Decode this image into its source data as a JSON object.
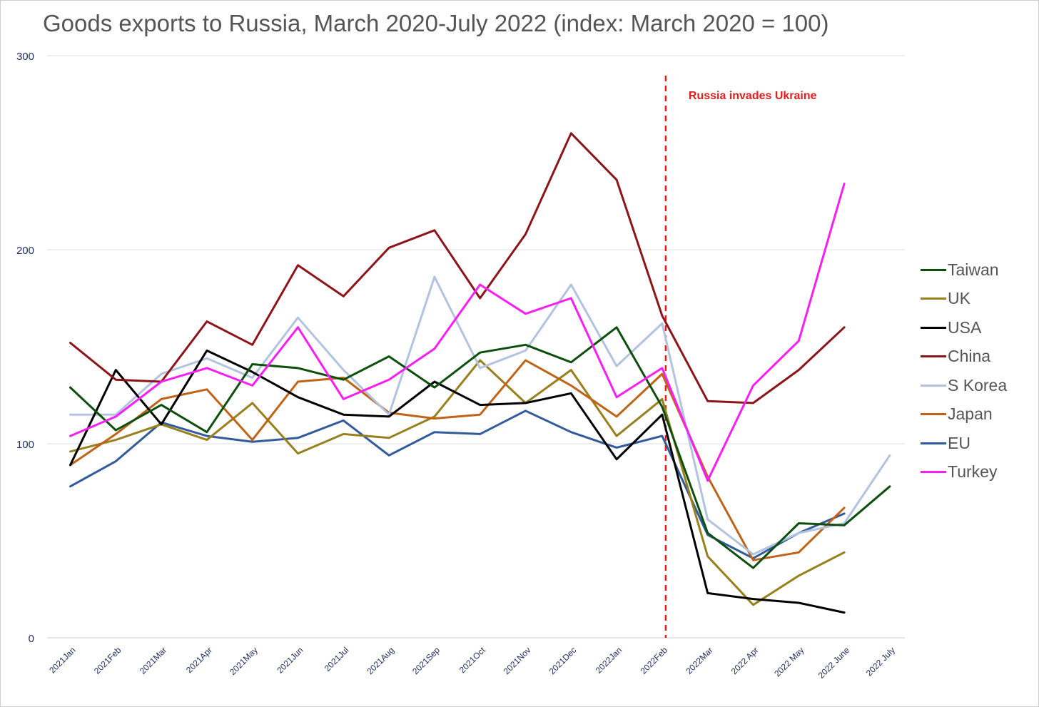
{
  "title": "Goods exports to Russia, March 2020-July 2022 (index: March 2020 = 100)",
  "chart_data": {
    "type": "line",
    "title": "Goods exports to Russia, March 2020-July 2022 (index: March 2020 = 100)",
    "xlabel": "",
    "ylabel": "",
    "categories": [
      "2021Jan",
      "2021Feb",
      "2021Mar",
      "2021Apr",
      "2021May",
      "2021Jun",
      "2021Jul",
      "2021Aug",
      "2021Sep",
      "2021Oct",
      "2021Nov",
      "2021Dec",
      "2022Jan",
      "2022Feb",
      "2022Mar",
      "2022 Apr",
      "2022 May",
      "2022 June",
      "2022 July"
    ],
    "yticks": [
      0,
      100,
      200,
      300
    ],
    "ylim": [
      0,
      300
    ],
    "grid": "horizontal",
    "legend_position": "right",
    "annotation": {
      "label": "Russia invades Ukraine",
      "category": "2022Feb",
      "color": "#e41d1d"
    },
    "series": [
      {
        "name": "Taiwan",
        "color": "#0d4f0d",
        "values": [
          129,
          107,
          120,
          106,
          141,
          139,
          133,
          145,
          129,
          147,
          151,
          142,
          160,
          119,
          54,
          36,
          59,
          58,
          78
        ]
      },
      {
        "name": "UK",
        "color": "#98801d",
        "values": [
          96,
          102,
          110,
          102,
          121,
          95,
          105,
          103,
          114,
          143,
          121,
          138,
          104,
          123,
          42,
          17,
          32,
          44,
          null
        ]
      },
      {
        "name": "USA",
        "color": "#000000",
        "values": [
          89,
          138,
          110,
          148,
          137,
          124,
          115,
          114,
          132,
          120,
          121,
          126,
          92,
          115,
          23,
          20,
          18,
          13,
          null
        ]
      },
      {
        "name": "China",
        "color": "#8b1519",
        "values": [
          152,
          133,
          132,
          163,
          151,
          192,
          176,
          201,
          210,
          175,
          208,
          260,
          236,
          166,
          122,
          121,
          138,
          160,
          null
        ]
      },
      {
        "name": "S Korea",
        "color": "#b2c3e0",
        "values": [
          115,
          115,
          136,
          144,
          134,
          165,
          138,
          115,
          186,
          139,
          148,
          182,
          140,
          162,
          61,
          43,
          54,
          59,
          94
        ]
      },
      {
        "name": "Japan",
        "color": "#c06316",
        "values": [
          89,
          105,
          123,
          128,
          102,
          132,
          134,
          116,
          113,
          115,
          143,
          130,
          114,
          136,
          83,
          40,
          44,
          67,
          null
        ]
      },
      {
        "name": "EU",
        "color": "#315b9b",
        "values": [
          78,
          91,
          111,
          104,
          101,
          103,
          112,
          94,
          106,
          105,
          117,
          106,
          98,
          104,
          53,
          41,
          54,
          64,
          null
        ]
      },
      {
        "name": "Turkey",
        "color": "#f91ef4",
        "values": [
          104,
          114,
          132,
          139,
          130,
          160,
          123,
          133,
          149,
          182,
          167,
          175,
          124,
          139,
          81,
          130,
          153,
          234,
          null
        ]
      }
    ]
  }
}
